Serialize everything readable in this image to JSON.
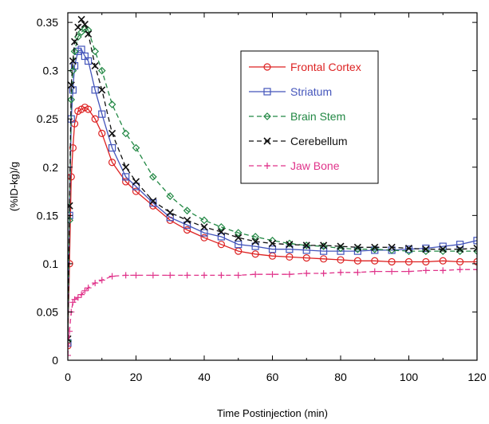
{
  "chart_data": {
    "type": "line",
    "xlabel": "Time Postinjection (min)",
    "ylabel": "(%ID-kg)/g",
    "xlim": [
      0,
      120
    ],
    "ylim": [
      0,
      0.36
    ],
    "xticks": [
      "0",
      "20",
      "40",
      "60",
      "80",
      "100",
      "120"
    ],
    "yticks": [
      "0",
      "0.05",
      "0.1",
      "0.15",
      "0.2",
      "0.25",
      "0.3",
      "0.35"
    ],
    "grid": false,
    "legend_position": "top-right",
    "series": [
      {
        "name": "Frontal Cortex",
        "color": "#dd2222",
        "marker": "circle",
        "dash": "solid",
        "x": [
          0,
          0.5,
          1,
          1.5,
          2,
          3,
          4,
          5,
          6,
          8,
          10,
          13,
          17,
          20,
          25,
          30,
          35,
          40,
          45,
          50,
          55,
          60,
          65,
          70,
          75,
          80,
          85,
          90,
          95,
          100,
          105,
          110,
          115,
          120
        ],
        "y": [
          0.015,
          0.1,
          0.19,
          0.22,
          0.245,
          0.258,
          0.26,
          0.262,
          0.26,
          0.25,
          0.235,
          0.205,
          0.185,
          0.175,
          0.16,
          0.145,
          0.135,
          0.127,
          0.12,
          0.113,
          0.11,
          0.108,
          0.107,
          0.106,
          0.105,
          0.104,
          0.103,
          0.103,
          0.102,
          0.102,
          0.102,
          0.103,
          0.102,
          0.102
        ]
      },
      {
        "name": "Striatum",
        "color": "#4455bb",
        "marker": "square",
        "dash": "solid",
        "x": [
          0,
          0.5,
          1,
          1.5,
          2,
          3,
          4,
          5,
          6,
          8,
          10,
          13,
          17,
          20,
          25,
          30,
          35,
          40,
          45,
          50,
          55,
          60,
          65,
          70,
          75,
          80,
          85,
          90,
          95,
          100,
          105,
          110,
          115,
          120
        ],
        "y": [
          0.018,
          0.15,
          0.25,
          0.28,
          0.305,
          0.32,
          0.322,
          0.315,
          0.31,
          0.28,
          0.255,
          0.22,
          0.19,
          0.18,
          0.163,
          0.148,
          0.14,
          0.132,
          0.128,
          0.12,
          0.118,
          0.115,
          0.115,
          0.114,
          0.113,
          0.113,
          0.113,
          0.114,
          0.114,
          0.115,
          0.116,
          0.118,
          0.12,
          0.124
        ]
      },
      {
        "name": "Brain Stem",
        "color": "#228844",
        "marker": "diamond",
        "dash": "dashed",
        "x": [
          0,
          0.5,
          1,
          1.5,
          2,
          3,
          4,
          5,
          6,
          8,
          10,
          13,
          17,
          20,
          25,
          30,
          35,
          40,
          45,
          50,
          55,
          60,
          65,
          70,
          75,
          80,
          85,
          90,
          95,
          100,
          105,
          110,
          115,
          120
        ],
        "y": [
          0.02,
          0.145,
          0.27,
          0.3,
          0.32,
          0.335,
          0.34,
          0.343,
          0.342,
          0.32,
          0.3,
          0.265,
          0.235,
          0.22,
          0.19,
          0.17,
          0.155,
          0.145,
          0.138,
          0.132,
          0.128,
          0.124,
          0.121,
          0.119,
          0.118,
          0.116,
          0.115,
          0.115,
          0.114,
          0.113,
          0.113,
          0.113,
          0.113,
          0.113
        ]
      },
      {
        "name": "Cerebellum",
        "color": "#111111",
        "marker": "x",
        "dash": "dashed",
        "x": [
          0,
          0.5,
          1,
          1.5,
          2,
          3,
          4,
          5,
          6,
          8,
          10,
          13,
          17,
          20,
          25,
          30,
          35,
          40,
          45,
          50,
          55,
          60,
          65,
          70,
          75,
          80,
          85,
          90,
          95,
          100,
          105,
          110,
          115,
          120
        ],
        "y": [
          0.022,
          0.16,
          0.285,
          0.31,
          0.33,
          0.345,
          0.353,
          0.348,
          0.338,
          0.305,
          0.28,
          0.235,
          0.2,
          0.185,
          0.165,
          0.153,
          0.145,
          0.138,
          0.133,
          0.127,
          0.123,
          0.121,
          0.12,
          0.119,
          0.119,
          0.118,
          0.117,
          0.117,
          0.117,
          0.116,
          0.115,
          0.115,
          0.115,
          0.116
        ]
      },
      {
        "name": "Jaw Bone",
        "color": "#e0338a",
        "marker": "plus",
        "dash": "dashed",
        "x": [
          0,
          0.5,
          1,
          1.5,
          2,
          3,
          4,
          5,
          6,
          8,
          10,
          13,
          17,
          20,
          25,
          30,
          35,
          40,
          45,
          50,
          55,
          60,
          65,
          70,
          75,
          80,
          85,
          90,
          95,
          100,
          105,
          110,
          115,
          120
        ],
        "y": [
          0.005,
          0.03,
          0.05,
          0.06,
          0.063,
          0.065,
          0.068,
          0.072,
          0.075,
          0.08,
          0.083,
          0.087,
          0.088,
          0.088,
          0.088,
          0.088,
          0.088,
          0.088,
          0.088,
          0.088,
          0.089,
          0.089,
          0.089,
          0.09,
          0.09,
          0.091,
          0.091,
          0.092,
          0.092,
          0.092,
          0.093,
          0.093,
          0.094,
          0.094
        ]
      }
    ]
  }
}
